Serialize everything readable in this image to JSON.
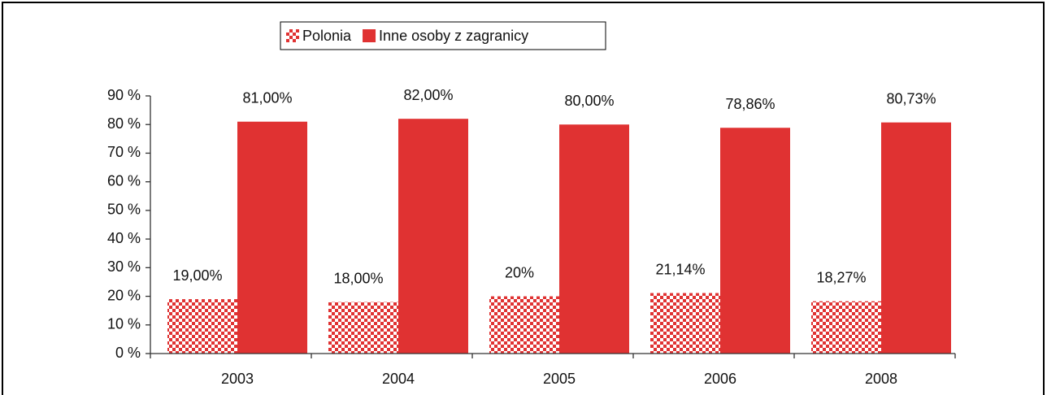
{
  "chart_data": {
    "type": "bar",
    "categories": [
      "2003",
      "2004",
      "2005",
      "2006",
      "2008"
    ],
    "series": [
      {
        "name": "Polonia",
        "color": "#e03232",
        "pattern": "checkerboard",
        "values": [
          19,
          18,
          20,
          21.14,
          18.27
        ],
        "value_labels": [
          "19,00%",
          "18,00%",
          "20%",
          "21,14%",
          "18,27%"
        ]
      },
      {
        "name": "Inne osoby z zagranicy",
        "color": "#e03232",
        "values": [
          81,
          82,
          80,
          78.86,
          80.73
        ],
        "value_labels": [
          "81,00%",
          "82,00%",
          "80,00%",
          "78,86%",
          "80,73%"
        ]
      }
    ],
    "ylim": [
      0,
      90
    ],
    "yticks": [
      {
        "value": 0,
        "label": "0 %"
      },
      {
        "value": 10,
        "label": "10 %"
      },
      {
        "value": 20,
        "label": "20 %"
      },
      {
        "value": 30,
        "label": "30 %"
      },
      {
        "value": 40,
        "label": "40 %"
      },
      {
        "value": 50,
        "label": "50 %"
      },
      {
        "value": 60,
        "label": "60 %"
      },
      {
        "value": 70,
        "label": "70 %"
      },
      {
        "value": 80,
        "label": "80 %"
      },
      {
        "value": 90,
        "label": "90 %"
      }
    ],
    "grid": false,
    "legend": "top"
  }
}
